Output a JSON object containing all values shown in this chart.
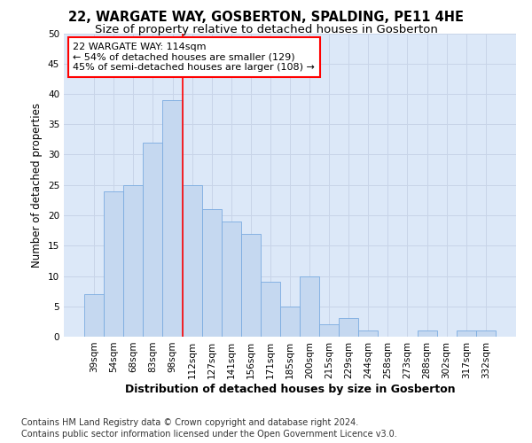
{
  "title": "22, WARGATE WAY, GOSBERTON, SPALDING, PE11 4HE",
  "subtitle": "Size of property relative to detached houses in Gosberton",
  "xlabel_bottom": "Distribution of detached houses by size in Gosberton",
  "ylabel": "Number of detached properties",
  "categories": [
    "39sqm",
    "54sqm",
    "68sqm",
    "83sqm",
    "98sqm",
    "112sqm",
    "127sqm",
    "141sqm",
    "156sqm",
    "171sqm",
    "185sqm",
    "200sqm",
    "215sqm",
    "229sqm",
    "244sqm",
    "258sqm",
    "273sqm",
    "288sqm",
    "302sqm",
    "317sqm",
    "332sqm"
  ],
  "values": [
    7,
    24,
    25,
    32,
    39,
    25,
    21,
    19,
    17,
    9,
    5,
    10,
    2,
    3,
    1,
    0,
    0,
    1,
    0,
    1,
    1
  ],
  "bar_color": "#c5d8f0",
  "bar_edge_color": "#7aabe0",
  "property_line_index": 5,
  "annotation_line1": "22 WARGATE WAY: 114sqm",
  "annotation_line2": "← 54% of detached houses are smaller (129)",
  "annotation_line3": "45% of semi-detached houses are larger (108) →",
  "annotation_box_color": "white",
  "annotation_box_edge_color": "red",
  "line_color": "red",
  "ylim": [
    0,
    50
  ],
  "yticks": [
    0,
    5,
    10,
    15,
    20,
    25,
    30,
    35,
    40,
    45,
    50
  ],
  "grid_color": "#c8d4e8",
  "bg_color": "#dce8f8",
  "footer_line1": "Contains HM Land Registry data © Crown copyright and database right 2024.",
  "footer_line2": "Contains public sector information licensed under the Open Government Licence v3.0.",
  "title_fontsize": 10.5,
  "subtitle_fontsize": 9.5,
  "xlabel_fontsize": 9,
  "ylabel_fontsize": 8.5,
  "tick_fontsize": 7.5,
  "annotation_fontsize": 8,
  "footer_fontsize": 7
}
